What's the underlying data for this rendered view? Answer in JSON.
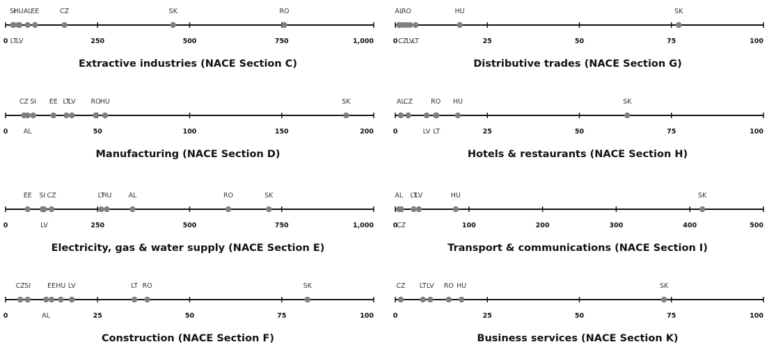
{
  "colors": {
    "axis": "#111111",
    "point": "#7f7f7f",
    "label": "#333333"
  },
  "chart_data": [
    {
      "type": "scatter",
      "title": "Extractive industries (NACE Section C)",
      "xlim": [
        0,
        1000
      ],
      "ticks": [
        0,
        250,
        500,
        750,
        1000
      ],
      "tick_labels": [
        "0",
        "250",
        "500",
        "750",
        "1,000"
      ],
      "points": [
        {
          "label": "SI",
          "value": 20,
          "pos": "above"
        },
        {
          "label": "HU",
          "value": 35,
          "pos": "above"
        },
        {
          "label": "LT",
          "value": 22,
          "pos": "below"
        },
        {
          "label": "LV",
          "value": 38,
          "pos": "below"
        },
        {
          "label": "AL",
          "value": 60,
          "pos": "above"
        },
        {
          "label": "EE",
          "value": 80,
          "pos": "above"
        },
        {
          "label": "CZ",
          "value": 160,
          "pos": "above"
        },
        {
          "label": "SK",
          "value": 455,
          "pos": "above"
        },
        {
          "label": "RO",
          "value": 757,
          "pos": "above"
        }
      ]
    },
    {
      "type": "scatter",
      "title": "Distributive trades (NACE Section G)",
      "xlim": [
        0,
        100
      ],
      "ticks": [
        0,
        25,
        50,
        75,
        100
      ],
      "tick_labels": [
        "0",
        "25",
        "50",
        "75",
        "100"
      ],
      "points": [
        {
          "label": "AL",
          "value": 1.0,
          "pos": "above"
        },
        {
          "label": "CZ",
          "value": 2.0,
          "pos": "below"
        },
        {
          "label": "RO",
          "value": 3.0,
          "pos": "above"
        },
        {
          "label": "LV",
          "value": 4.0,
          "pos": "below"
        },
        {
          "label": "LT",
          "value": 5.5,
          "pos": "below"
        },
        {
          "label": "HU",
          "value": 17.5,
          "pos": "above"
        },
        {
          "label": "SK",
          "value": 77,
          "pos": "above"
        }
      ]
    },
    {
      "type": "scatter",
      "title": "Manufacturing (NACE Section D)",
      "xlim": [
        0,
        200
      ],
      "ticks": [
        0,
        50,
        100,
        150,
        200
      ],
      "tick_labels": [
        "0",
        "50",
        "100",
        "150",
        "200"
      ],
      "points": [
        {
          "label": "CZ",
          "value": 10,
          "pos": "above"
        },
        {
          "label": "AL",
          "value": 12,
          "pos": "below"
        },
        {
          "label": "SI",
          "value": 15,
          "pos": "above"
        },
        {
          "label": "EE",
          "value": 26,
          "pos": "above"
        },
        {
          "label": "LT",
          "value": 33,
          "pos": "above"
        },
        {
          "label": "LV",
          "value": 36,
          "pos": "above"
        },
        {
          "label": "RO",
          "value": 49,
          "pos": "above"
        },
        {
          "label": "HU",
          "value": 54,
          "pos": "above"
        },
        {
          "label": "SK",
          "value": 185,
          "pos": "above"
        }
      ]
    },
    {
      "type": "scatter",
      "title": "Hotels & restaurants (NACE Section H)",
      "xlim": [
        0,
        100
      ],
      "ticks": [
        0,
        25,
        50,
        75,
        100
      ],
      "tick_labels": [
        "0",
        "25",
        "50",
        "75",
        "100"
      ],
      "points": [
        {
          "label": "AL",
          "value": 1.5,
          "pos": "above"
        },
        {
          "label": "CZ",
          "value": 3.5,
          "pos": "above"
        },
        {
          "label": "LV",
          "value": 8.5,
          "pos": "below"
        },
        {
          "label": "RO",
          "value": 11,
          "pos": "above"
        },
        {
          "label": "LT",
          "value": 11.2,
          "pos": "below"
        },
        {
          "label": "HU",
          "value": 17,
          "pos": "above"
        },
        {
          "label": "SK",
          "value": 63,
          "pos": "above"
        }
      ]
    },
    {
      "type": "scatter",
      "title": "Electricity, gas & water supply (NACE Section E)",
      "xlim": [
        0,
        1000
      ],
      "ticks": [
        0,
        250,
        500,
        750,
        1000
      ],
      "tick_labels": [
        "0",
        "250",
        "500",
        "750",
        "1,000"
      ],
      "points": [
        {
          "label": "EE",
          "value": 60,
          "pos": "above"
        },
        {
          "label": "SI",
          "value": 100,
          "pos": "above"
        },
        {
          "label": "LV",
          "value": 105,
          "pos": "below"
        },
        {
          "label": "CZ",
          "value": 125,
          "pos": "above"
        },
        {
          "label": "LT",
          "value": 260,
          "pos": "above"
        },
        {
          "label": "HU",
          "value": 275,
          "pos": "above"
        },
        {
          "label": "AL",
          "value": 345,
          "pos": "above"
        },
        {
          "label": "RO",
          "value": 605,
          "pos": "above"
        },
        {
          "label": "SK",
          "value": 715,
          "pos": "above"
        }
      ]
    },
    {
      "type": "scatter",
      "title": "Transport & communications (NACE Section I)",
      "xlim": [
        0,
        500
      ],
      "ticks": [
        0,
        100,
        200,
        300,
        400,
        500
      ],
      "tick_labels": [
        "0",
        "100",
        "200",
        "300",
        "400",
        "500"
      ],
      "points": [
        {
          "label": "AL",
          "value": 5,
          "pos": "above"
        },
        {
          "label": "CZ",
          "value": 8,
          "pos": "below"
        },
        {
          "label": "LT",
          "value": 25,
          "pos": "above"
        },
        {
          "label": "LV",
          "value": 32,
          "pos": "above"
        },
        {
          "label": "HU",
          "value": 82,
          "pos": "above"
        },
        {
          "label": "SK",
          "value": 417,
          "pos": "above"
        }
      ]
    },
    {
      "type": "scatter",
      "title": "Construction (NACE Section F)",
      "xlim": [
        0,
        100
      ],
      "ticks": [
        0,
        25,
        50,
        75,
        100
      ],
      "tick_labels": [
        "0",
        "25",
        "50",
        "75",
        "100"
      ],
      "points": [
        {
          "label": "CZ",
          "value": 4,
          "pos": "above"
        },
        {
          "label": "SI",
          "value": 6,
          "pos": "above"
        },
        {
          "label": "AL",
          "value": 11,
          "pos": "below"
        },
        {
          "label": "EE",
          "value": 12.5,
          "pos": "above"
        },
        {
          "label": "HU",
          "value": 15,
          "pos": "above"
        },
        {
          "label": "LV",
          "value": 18,
          "pos": "above"
        },
        {
          "label": "LT",
          "value": 35,
          "pos": "above"
        },
        {
          "label": "RO",
          "value": 38.5,
          "pos": "above"
        },
        {
          "label": "SK",
          "value": 82,
          "pos": "above"
        }
      ]
    },
    {
      "type": "scatter",
      "title": "Business services (NACE Section K)",
      "xlim": [
        0,
        100
      ],
      "ticks": [
        0,
        25,
        50,
        75,
        100
      ],
      "tick_labels": [
        "0",
        "25",
        "50",
        "75",
        "100"
      ],
      "points": [
        {
          "label": "CZ",
          "value": 1.5,
          "pos": "above"
        },
        {
          "label": "LT",
          "value": 7.5,
          "pos": "above"
        },
        {
          "label": "LV",
          "value": 9.5,
          "pos": "above"
        },
        {
          "label": "RO",
          "value": 14.5,
          "pos": "above"
        },
        {
          "label": "HU",
          "value": 18,
          "pos": "above"
        },
        {
          "label": "SK",
          "value": 73,
          "pos": "above"
        }
      ]
    }
  ]
}
